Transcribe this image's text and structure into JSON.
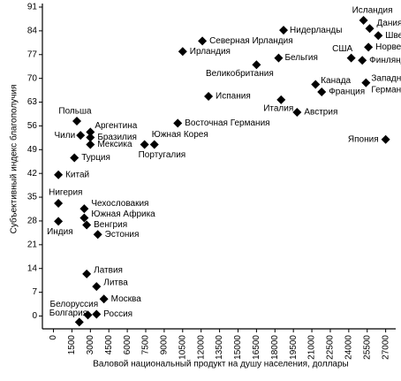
{
  "chart_data": {
    "type": "scatter",
    "xlabel": "Валовой национальный продукт на душу населения, доллары",
    "ylabel": "Субъективный индекс благополучия",
    "color": "#000000",
    "xlim": [
      -900,
      27600
    ],
    "ylim": [
      -3,
      91
    ],
    "xticks": [
      0,
      1500,
      3000,
      4500,
      6000,
      7500,
      9000,
      10500,
      12000,
      13500,
      15000,
      16500,
      18000,
      19500,
      21000,
      22500,
      24000,
      25500,
      27000
    ],
    "yticks": [
      0,
      7,
      14,
      21,
      28,
      35,
      42,
      49,
      56,
      63,
      70,
      77,
      84,
      91
    ],
    "labels": [
      "Исландия",
      "Дания",
      "Швеция",
      "Норвегия",
      "Финляндия",
      "США",
      "Нидерланды",
      "Бельгия",
      "Великобритания",
      "Западная Германия",
      "Канада",
      "Франция",
      "Италия",
      "Австрия",
      "Япония",
      "Северная Ирландия",
      "Ирландия",
      "Испания",
      "Восточная Германия",
      "Южная Корея",
      "Португалия",
      "Польша",
      "Аргентина",
      "Чили",
      "Бразилия",
      "Мексика",
      "Турция",
      "Китай",
      "Нигерия",
      "Индия",
      "Чехословакия",
      "Южная Африка",
      "Венгрия",
      "Эстония",
      "Латвия",
      "Литва",
      "Москва",
      "Белоруссия",
      "Болгария",
      "Россия"
    ],
    "x": [
      25200,
      25700,
      26400,
      25600,
      25100,
      24200,
      18700,
      18300,
      16500,
      25400,
      21300,
      21800,
      18500,
      19800,
      27000,
      12100,
      10500,
      12600,
      10100,
      8200,
      7400,
      1900,
      3000,
      2200,
      3000,
      3000,
      1700,
      400,
      400,
      400,
      2500,
      2500,
      2700,
      3600,
      2700,
      3500,
      4100,
      2800,
      2100,
      3500
    ],
    "values": [
      87.1,
      84.7,
      82.6,
      79.2,
      75.3,
      76,
      84.2,
      76,
      74,
      68.7,
      68.2,
      66,
      63.7,
      60,
      52,
      81,
      77.9,
      64.7,
      56.8,
      50.5,
      50.5,
      57.4,
      54.2,
      53.2,
      52.6,
      50.5,
      46.6,
      41.6,
      33.2,
      27.9,
      31.6,
      28.9,
      26.8,
      24,
      12.4,
      8.7,
      5,
      0.3,
      -1.8,
      0.5
    ]
  }
}
